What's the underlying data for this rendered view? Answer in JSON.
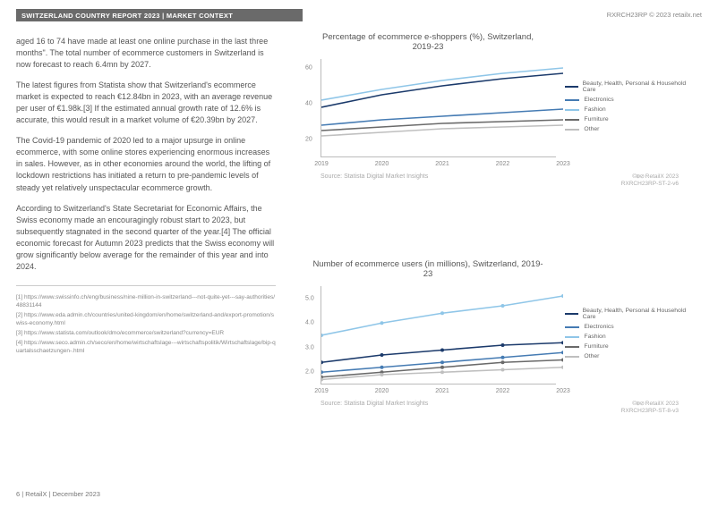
{
  "header": {
    "title_bar": "SWITZERLAND COUNTRY REPORT 2023 | MARKET CONTEXT",
    "rights": "RXRCH23RP © 2023 retailx.net"
  },
  "paragraphs": {
    "p1": "aged 16 to 74 have made at least one online purchase in the last three months\". The total number of ecommerce customers in Switzerland is now forecast to reach 6.4mn by 2027.",
    "p2": "The latest figures from Statista show that Switzerland's ecommerce market is expected to reach €12.84bn in 2023, with an average revenue per user of €1.98k.[3] If the estimated annual growth rate of 12.6% is accurate, this would result in a market volume of €20.39bn by 2027.",
    "p3": "The Covid-19 pandemic of 2020 led to a major upsurge in online ecommerce, with some online stores experiencing enormous increases in sales. However, as in other economies around the world, the lifting of lockdown restrictions has initiated a return to pre-pandemic levels of steady yet relatively unspectacular ecommerce growth.",
    "p4": "According to Switzerland's State Secretariat for Economic Affairs, the Swiss economy made an encouragingly robust start to 2023, but subsequently stagnated in the second quarter of the year.[4] The official economic forecast for Autumn 2023 predicts that the Swiss economy will grow significantly below average for the remainder of this year and into 2024."
  },
  "refs": {
    "r1": "[1] https://www.swissinfo.ch/eng/business/nine-million-in-switzerland---not-quite-yet---say-authorities/48831144",
    "r2": "[2] https://www.eda.admin.ch/countries/united-kingdom/en/home/switzerland-and/export-promotion/swiss-economy.html",
    "r3": "[3] https://www.statista.com/outlook/dmo/ecommerce/switzerland?currency=EUR",
    "r4": "[4] https://www.seco.admin.ch/seco/en/home/wirtschaftslage---wirtschaftspolitik/Wirtschaftslage/bip-quartalsschaetzungen-.html"
  },
  "footer": "6 | RetailX | December 2023",
  "chart1": {
    "title": "Percentage of ecommerce e-shoppers (%), Switzerland, 2019-23",
    "type": "line",
    "categories": [
      "2019",
      "2020",
      "2021",
      "2022",
      "2023"
    ],
    "yticks": [
      20,
      40,
      60
    ],
    "ylim": [
      10,
      65
    ],
    "series": [
      {
        "label": "Beauty, Health, Personal & Household Care",
        "color": "#1b3a6b",
        "values": [
          38,
          45,
          50,
          54,
          57
        ]
      },
      {
        "label": "Electronics",
        "color": "#457bb3",
        "values": [
          28,
          31,
          33,
          35,
          37
        ]
      },
      {
        "label": "Fashion",
        "color": "#8fc6e8",
        "values": [
          42,
          48,
          53,
          57,
          60
        ]
      },
      {
        "label": "Furniture",
        "color": "#6a6a6a",
        "values": [
          25,
          27,
          29,
          30,
          31
        ]
      },
      {
        "label": "Other",
        "color": "#bfbfbf",
        "values": [
          22,
          24,
          26,
          27,
          28
        ]
      }
    ],
    "source": "Source: Statista Digital Market Insights",
    "cc": "©⊕⊘",
    "attr1": "RetailX 2023",
    "attr2": "RXRCH23RP-ST-2-v6"
  },
  "chart2": {
    "title": "Number of ecommerce users (in millions), Switzerland, 2019-23",
    "type": "line",
    "categories": [
      "2019",
      "2020",
      "2021",
      "2022",
      "2023"
    ],
    "yticks": [
      2.0,
      3.0,
      4.0,
      5.0
    ],
    "ylim": [
      1.5,
      5.5
    ],
    "series": [
      {
        "label": "Beauty, Health, Personal & Household Care",
        "color": "#1b3a6b",
        "values": [
          2.4,
          2.7,
          2.9,
          3.1,
          3.2
        ]
      },
      {
        "label": "Electronics",
        "color": "#457bb3",
        "values": [
          2.0,
          2.2,
          2.4,
          2.6,
          2.8
        ]
      },
      {
        "label": "Fashion",
        "color": "#8fc6e8",
        "values": [
          3.5,
          4.0,
          4.4,
          4.7,
          5.1
        ]
      },
      {
        "label": "Furniture",
        "color": "#6a6a6a",
        "values": [
          1.8,
          2.0,
          2.2,
          2.4,
          2.5
        ]
      },
      {
        "label": "Other",
        "color": "#bfbfbf",
        "values": [
          1.7,
          1.9,
          2.0,
          2.1,
          2.2
        ]
      }
    ],
    "source": "Source: Statista Digital Market Insights",
    "cc": "©⊕⊘",
    "attr1": "RetailX 2023",
    "attr2": "RXRCH23RP-ST-8-v3"
  }
}
